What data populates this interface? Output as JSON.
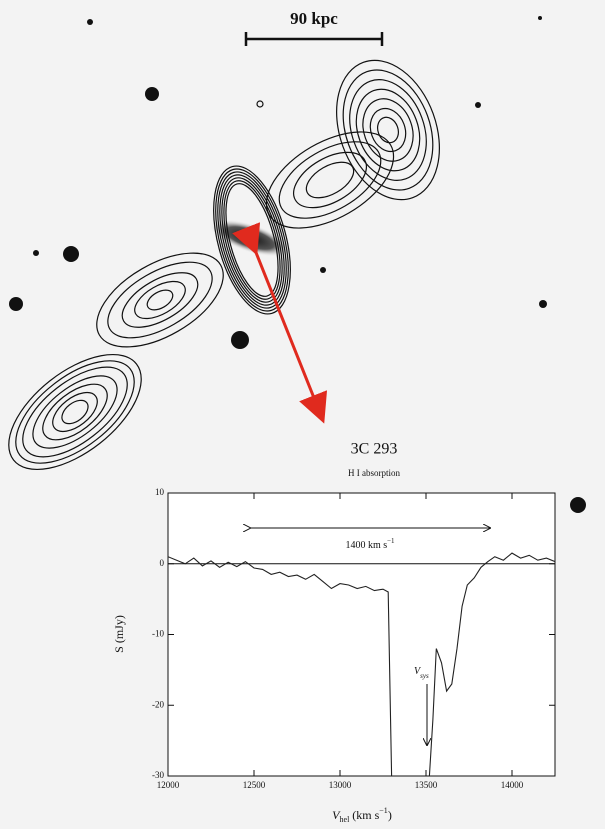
{
  "chart_data": {
    "type": "line",
    "scale_bar": "90 kpc",
    "title": "3C 293",
    "subtitle": "H I absorption",
    "annotation": "1400 km s",
    "annotation_sup": "−1",
    "vsys_label": [
      "V",
      "sys"
    ],
    "x_label": [
      "V",
      "hel",
      " (km s",
      "−1",
      ")"
    ],
    "y_label": "S (mJy)",
    "x": [
      12000,
      12050,
      12100,
      12150,
      12200,
      12250,
      12300,
      12350,
      12400,
      12450,
      12500,
      12550,
      12600,
      12650,
      12700,
      12750,
      12800,
      12850,
      12900,
      12950,
      13000,
      13050,
      13100,
      13150,
      13200,
      13250,
      13280,
      13300,
      13400,
      13520,
      13540,
      13560,
      13590,
      13620,
      13650,
      13680,
      13710,
      13740,
      13780,
      13820,
      13860,
      13900,
      13950,
      14000,
      14050,
      14100,
      14150,
      14200,
      14250
    ],
    "series": [
      {
        "color": "#222222",
        "values": [
          1,
          0.5,
          0,
          0.8,
          -0.3,
          0.4,
          -0.5,
          0.2,
          -0.4,
          0.3,
          -0.6,
          -0.8,
          -1.5,
          -1.2,
          -1.8,
          -1.6,
          -2.2,
          -1.5,
          -2.5,
          -3.5,
          -2.8,
          -3,
          -3.5,
          -3.2,
          -3.8,
          -3.6,
          -4,
          -30,
          null,
          -30,
          -22,
          -12,
          -14,
          -18,
          -17,
          -12,
          -6,
          -3,
          -2,
          -0.5,
          0.3,
          1,
          0.5,
          1.5,
          0.8,
          1.2,
          0.5,
          0.8,
          0.3
        ]
      }
    ],
    "xlim": [
      12000,
      14250
    ],
    "ylim": [
      -30,
      10
    ],
    "xticks": [
      12000,
      12500,
      13000,
      13500,
      14000
    ],
    "yticks": [
      10,
      0,
      -10,
      -20,
      -30
    ]
  }
}
